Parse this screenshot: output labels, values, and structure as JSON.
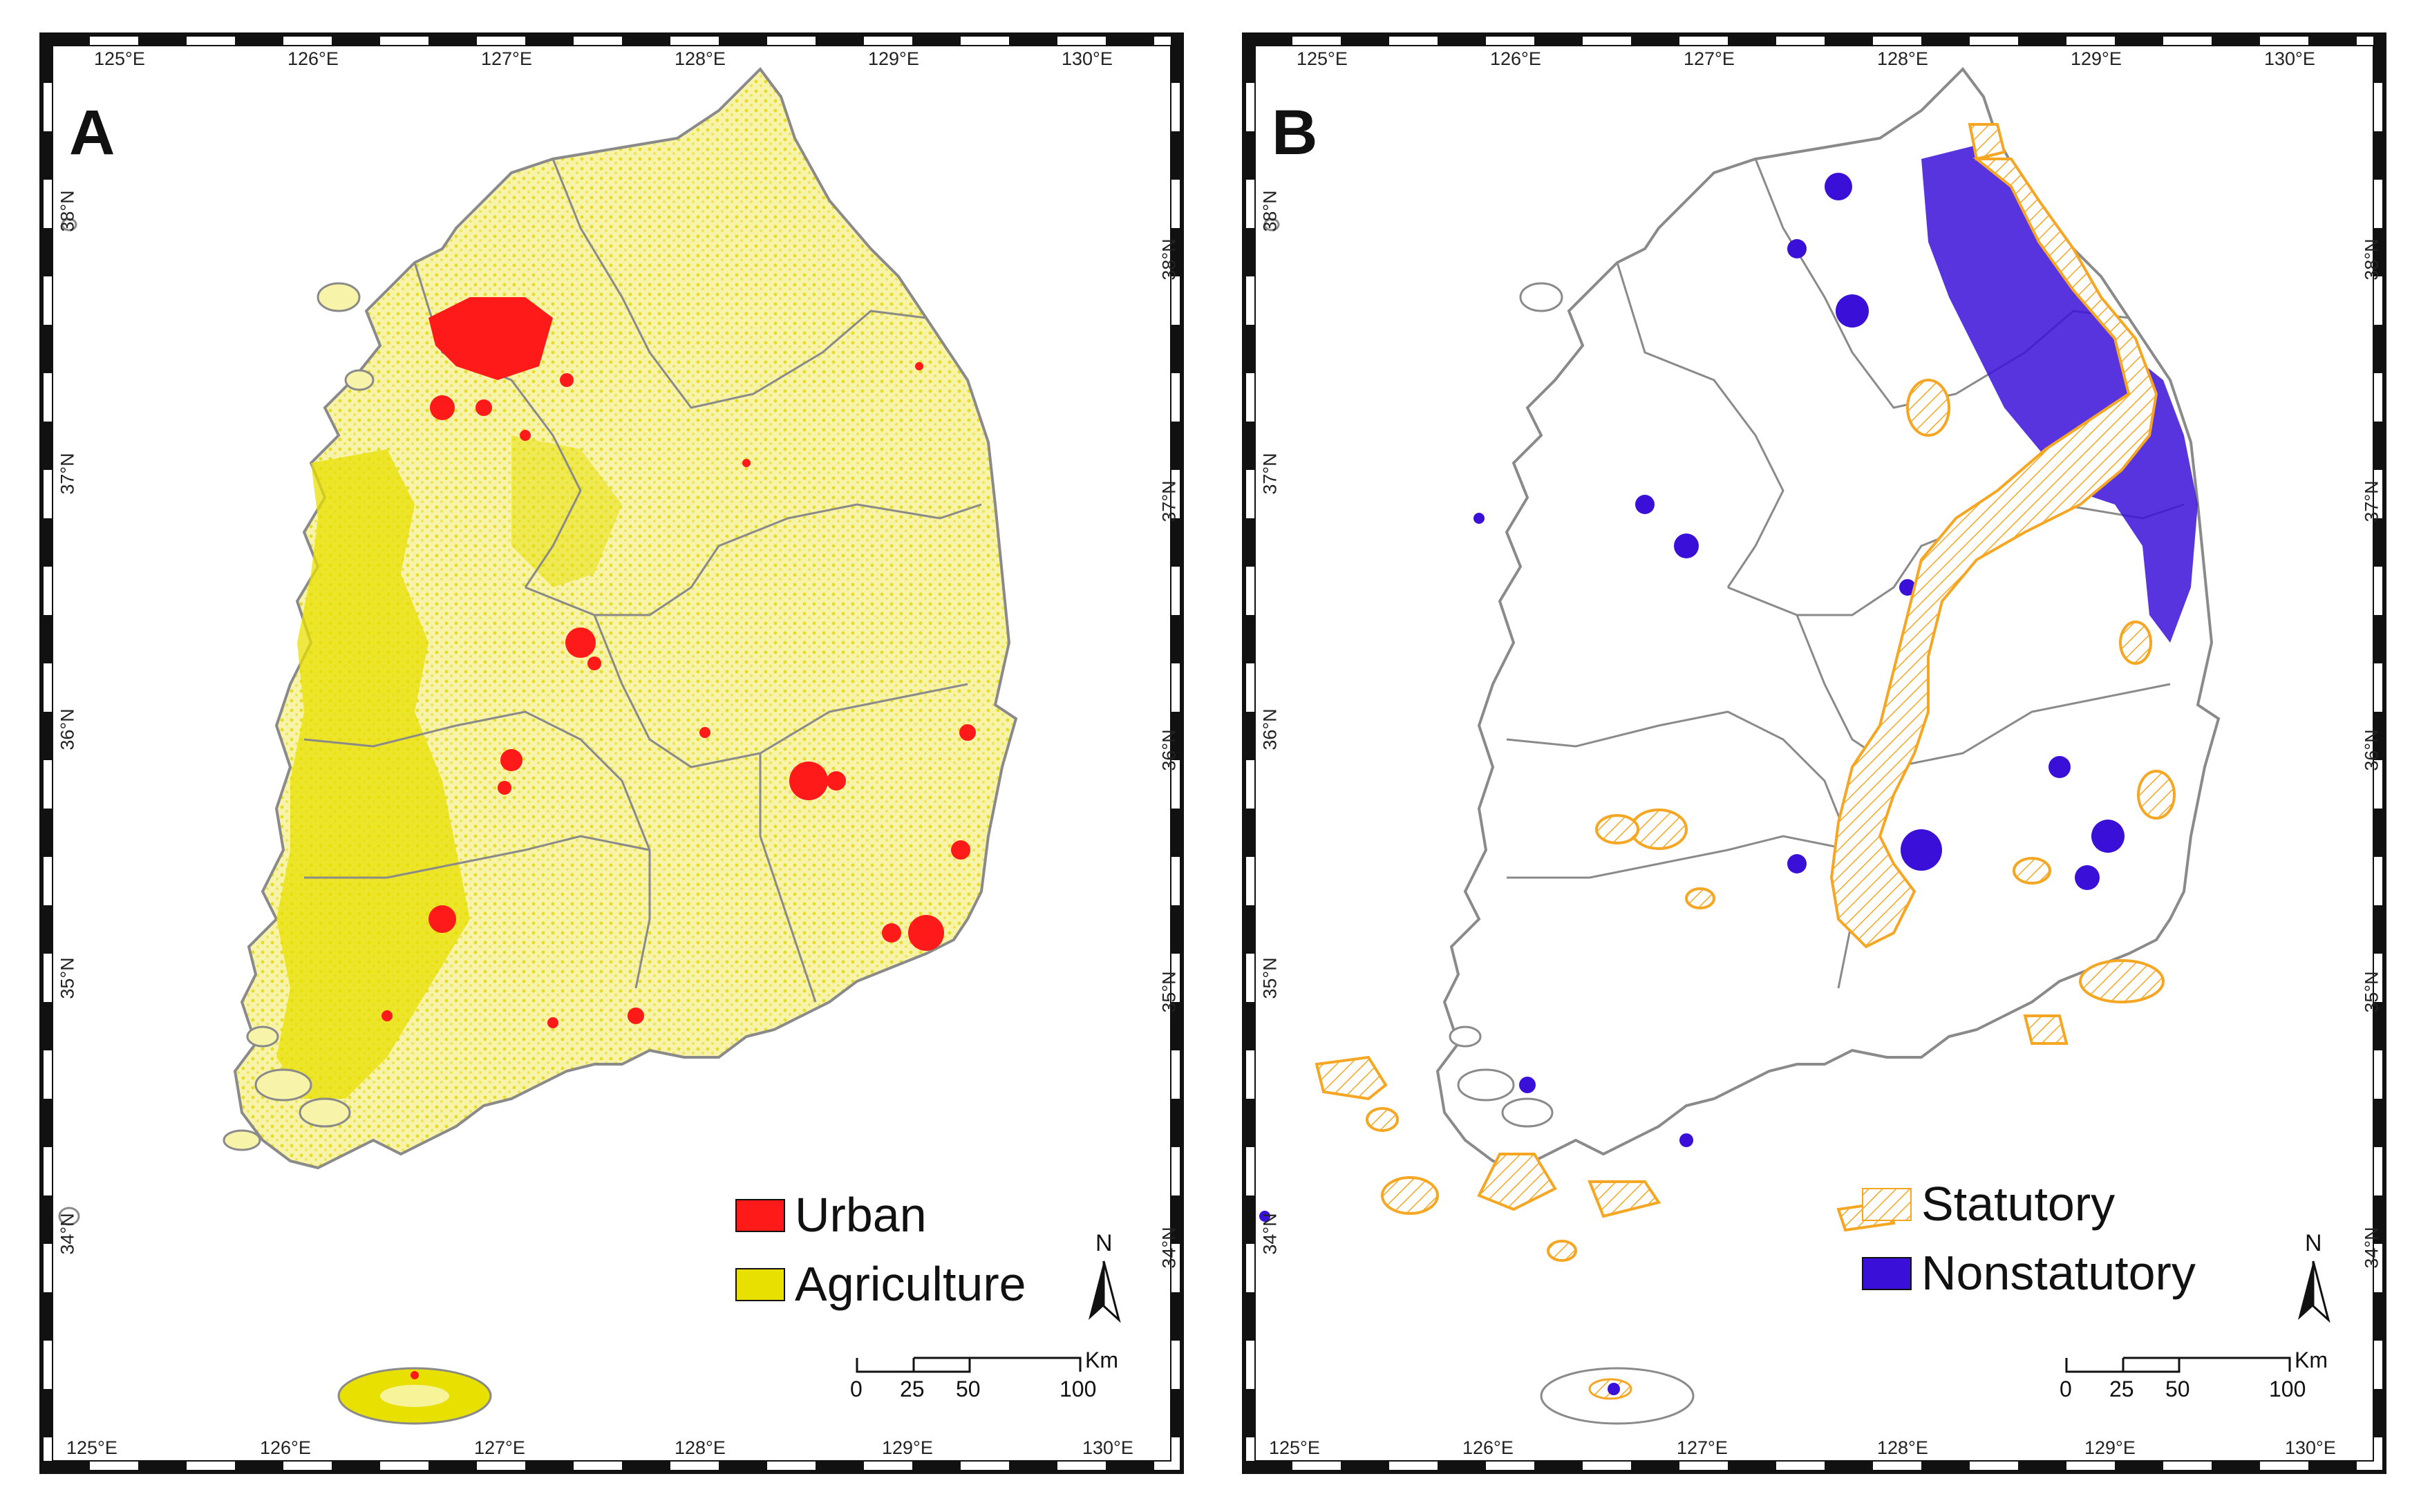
{
  "panels": {
    "a": {
      "letter": "A",
      "legend": [
        {
          "label": "Urban",
          "color": "#ff1a1a"
        },
        {
          "label": "Agriculture",
          "color": "#e8e000"
        }
      ]
    },
    "b": {
      "letter": "B",
      "legend": [
        {
          "label": "Statutory",
          "color": "#f5a623",
          "pattern": "hatched"
        },
        {
          "label": "Nonstatutory",
          "color": "#3a10d8"
        }
      ]
    }
  },
  "axes": {
    "lon_ticks": [
      "125°E",
      "126°E",
      "127°E",
      "128°E",
      "129°E",
      "130°E"
    ],
    "lat_ticks": [
      "38°N",
      "37°N",
      "36°N",
      "35°N",
      "34°N"
    ]
  },
  "north_arrow": {
    "label": "N"
  },
  "scale_bar": {
    "values": [
      "0",
      "25",
      "50",
      "100"
    ],
    "unit": "Km"
  },
  "colors": {
    "boundary": "#8a8a8a",
    "frame": "#111111"
  }
}
